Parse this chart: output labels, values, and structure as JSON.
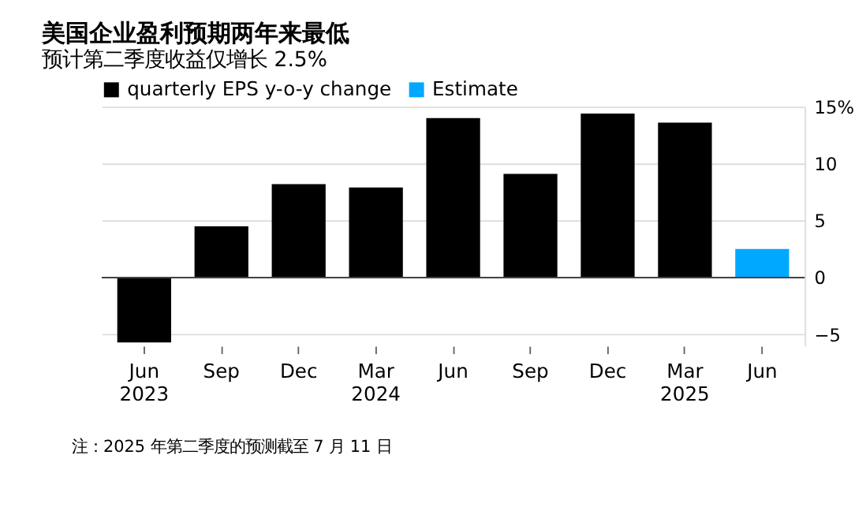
{
  "chart_data": {
    "type": "bar",
    "title": "美国企业盈利预期两年来最低",
    "subtitle": "预计第二季度收益仅增长 2.5%",
    "categories": [
      "Jun 2023",
      "Sep",
      "Dec",
      "Mar 2024",
      "Jun",
      "Sep",
      "Dec",
      "Mar 2025",
      "Jun"
    ],
    "series": [
      {
        "name": "quarterly EPS y-o-y change",
        "color": "#000000",
        "values": [
          -5.7,
          4.5,
          8.2,
          7.9,
          14.0,
          9.1,
          14.4,
          13.6,
          null
        ]
      },
      {
        "name": "Estimate",
        "color": "#00a8ff",
        "values": [
          null,
          null,
          null,
          null,
          null,
          null,
          null,
          null,
          2.5
        ]
      }
    ],
    "stacked": true,
    "ylim": [
      -6,
      15
    ],
    "yticks": [
      {
        "value": 15,
        "label": "15%"
      },
      10,
      5,
      0,
      -5
    ],
    "grid": "y",
    "legend": "top left",
    "ref_lines": [
      {
        "axis": "y",
        "value": 0
      }
    ],
    "annotations": [
      "注：2025 年第二季度的预测截至 7 月 11 日"
    ]
  }
}
